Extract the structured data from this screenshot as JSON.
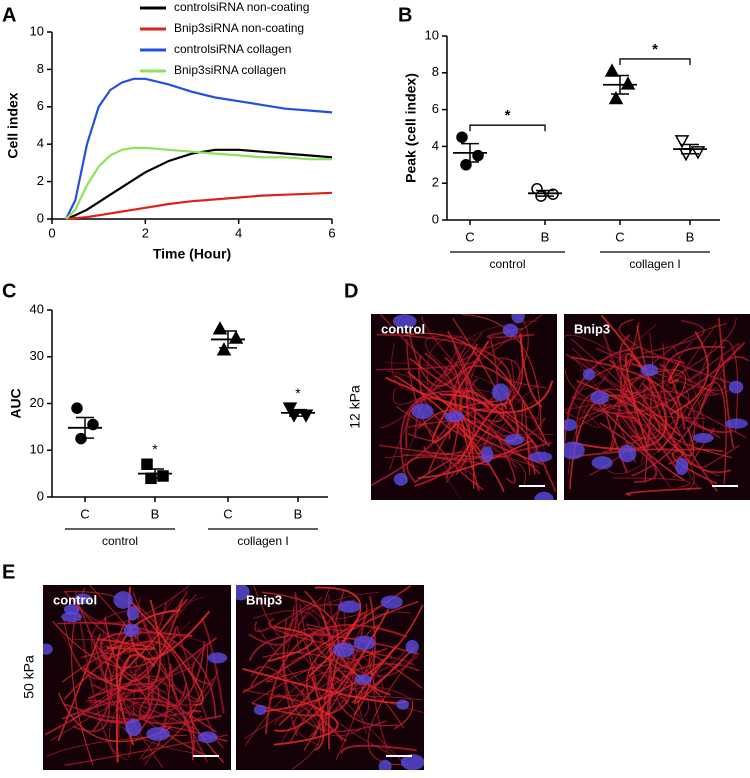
{
  "chart_data": [
    {
      "type": "line",
      "panel_label": "A",
      "x_label": "Time (Hour)",
      "y_label": "Cell index",
      "x": [
        0.3,
        0.5,
        0.75,
        1,
        1.25,
        1.5,
        1.75,
        2,
        2.5,
        3,
        3.5,
        4,
        4.5,
        5,
        5.5,
        6
      ],
      "series": [
        {
          "name": "controlsiRNA non-coating",
          "color": "#000000",
          "values": [
            0,
            0.2,
            0.5,
            0.9,
            1.3,
            1.7,
            2.1,
            2.5,
            3.1,
            3.5,
            3.7,
            3.7,
            3.6,
            3.5,
            3.4,
            3.3
          ]
        },
        {
          "name": "Bnip3siRNA non-coating",
          "color": "#e0201b",
          "values": [
            0,
            0.05,
            0.1,
            0.2,
            0.3,
            0.4,
            0.5,
            0.6,
            0.8,
            0.95,
            1.05,
            1.15,
            1.25,
            1.3,
            1.35,
            1.4
          ]
        },
        {
          "name": "controlsiRNA collagen",
          "color": "#2250e0",
          "values": [
            0,
            1.0,
            4.0,
            6.0,
            6.9,
            7.3,
            7.5,
            7.5,
            7.2,
            6.8,
            6.5,
            6.3,
            6.1,
            5.9,
            5.8,
            5.7
          ]
        },
        {
          "name": "Bnip3siRNA collagen",
          "color": "#8fe05a",
          "values": [
            0,
            0.5,
            1.8,
            2.8,
            3.4,
            3.7,
            3.8,
            3.8,
            3.7,
            3.6,
            3.5,
            3.4,
            3.3,
            3.3,
            3.2,
            3.2
          ]
        }
      ],
      "xlim": [
        0,
        6
      ],
      "xticks": [
        0,
        2,
        4,
        6
      ],
      "ylim": [
        0,
        10
      ],
      "yticks": [
        0,
        2,
        4,
        6,
        8,
        10
      ],
      "legend": "top-right"
    },
    {
      "type": "dotplot",
      "panel_label": "B",
      "y_label": "Peak (cell index)",
      "categories": [
        "C",
        "B",
        "C",
        "B"
      ],
      "groups": [
        "control",
        "collagen I"
      ],
      "markers": [
        "circle",
        "circle-open",
        "triangle",
        "triangle-down-open"
      ],
      "points": [
        [
          4.5,
          3.5,
          3.0
        ],
        [
          1.7,
          1.4,
          1.3
        ],
        [
          8.1,
          7.4,
          6.6
        ],
        [
          4.3,
          3.7,
          3.6
        ]
      ],
      "means": [
        3.65,
        1.45,
        7.35,
        3.85
      ],
      "errors": [
        0.5,
        0.15,
        0.5,
        0.25
      ],
      "annotations": [
        "*",
        "*"
      ],
      "ylim": [
        0,
        10
      ],
      "yticks": [
        0,
        2,
        4,
        6,
        8,
        10
      ]
    },
    {
      "type": "dotplot",
      "panel_label": "C",
      "y_label": "AUC",
      "categories": [
        "C",
        "B",
        "C",
        "B"
      ],
      "groups": [
        "control",
        "collagen I"
      ],
      "markers": [
        "circle",
        "square",
        "triangle",
        "triangle-down"
      ],
      "points": [
        [
          19,
          15.5,
          12.5
        ],
        [
          7,
          4.5,
          4
        ],
        [
          36,
          34,
          31.5
        ],
        [
          19,
          17.5,
          17.5
        ]
      ],
      "means": [
        14.8,
        5,
        33.7,
        18
      ],
      "errors": [
        2.2,
        1,
        1.8,
        0.7
      ],
      "annotations": [
        "*",
        "*"
      ],
      "ylim": [
        0,
        40
      ],
      "yticks": [
        0,
        10,
        20,
        30,
        40
      ]
    }
  ],
  "images": [
    {
      "panel_label": "D",
      "side_label": "12 kPa",
      "tiles": [
        "control",
        "Bnip3"
      ]
    },
    {
      "panel_label": "E",
      "side_label": "50 kPa",
      "tiles": [
        "control",
        "Bnip3"
      ]
    }
  ]
}
